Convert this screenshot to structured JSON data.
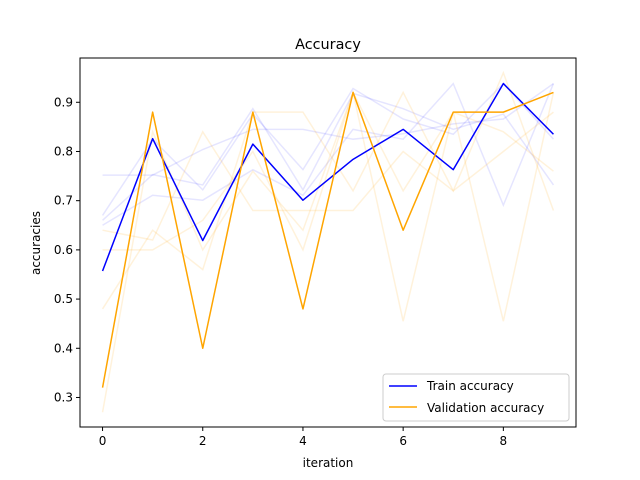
{
  "chart_data": {
    "type": "line",
    "title": "Accuracy",
    "xlabel": "iteration",
    "ylabel": "accuracies",
    "x": [
      0,
      1,
      2,
      3,
      4,
      5,
      6,
      7,
      8,
      9
    ],
    "xlim": [
      -0.45,
      9.45
    ],
    "ylim": [
      0.24,
      0.99
    ],
    "xticks": [
      0,
      2,
      4,
      6,
      8
    ],
    "yticks": [
      0.3,
      0.4,
      0.5,
      0.6,
      0.7,
      0.8,
      0.9
    ],
    "xtick_labels": [
      "0",
      "2",
      "4",
      "6",
      "8"
    ],
    "ytick_labels": [
      "0.3",
      "0.4",
      "0.5",
      "0.6",
      "0.7",
      "0.8",
      "0.9"
    ],
    "grid": false,
    "legend_position": "lower-right",
    "colors": {
      "train": "#0000ff",
      "validation": "#ffa500"
    },
    "series": [
      {
        "name": "Train accuracy",
        "color": "#0000ff",
        "values": [
          0.557,
          0.826,
          0.619,
          0.815,
          0.701,
          0.784,
          0.845,
          0.763,
          0.938,
          0.835
        ]
      },
      {
        "name": "Validation accuracy",
        "color": "#ffa500",
        "values": [
          0.32,
          0.88,
          0.4,
          0.88,
          0.48,
          0.92,
          0.64,
          0.88,
          0.88,
          0.92
        ]
      }
    ],
    "background_runs": {
      "train": [
        [
          0.752,
          0.752,
          0.804,
          0.845,
          0.845,
          0.825,
          0.836,
          0.856,
          0.866,
          0.938
        ],
        [
          0.67,
          0.825,
          0.722,
          0.876,
          0.763,
          0.928,
          0.866,
          0.835,
          0.938,
          0.825
        ],
        [
          0.65,
          0.711,
          0.701,
          0.763,
          0.711,
          0.845,
          0.825,
          0.938,
          0.691,
          0.938
        ],
        [
          0.66,
          0.753,
          0.732,
          0.887,
          0.722,
          0.918,
          0.887,
          0.845,
          0.876,
          0.732
        ]
      ],
      "validation": [
        [
          0.64,
          0.62,
          0.84,
          0.68,
          0.68,
          0.68,
          0.8,
          0.72,
          0.8,
          0.88
        ],
        [
          0.48,
          0.64,
          0.56,
          0.88,
          0.88,
          0.72,
          0.92,
          0.72,
          0.96,
          0.68
        ],
        [
          0.27,
          0.84,
          0.6,
          0.76,
          0.64,
          0.92,
          0.72,
          0.88,
          0.84,
          0.76
        ],
        [
          0.6,
          0.6,
          0.66,
          0.8,
          0.6,
          0.92,
          0.455,
          0.88,
          0.455,
          0.92
        ]
      ]
    }
  }
}
